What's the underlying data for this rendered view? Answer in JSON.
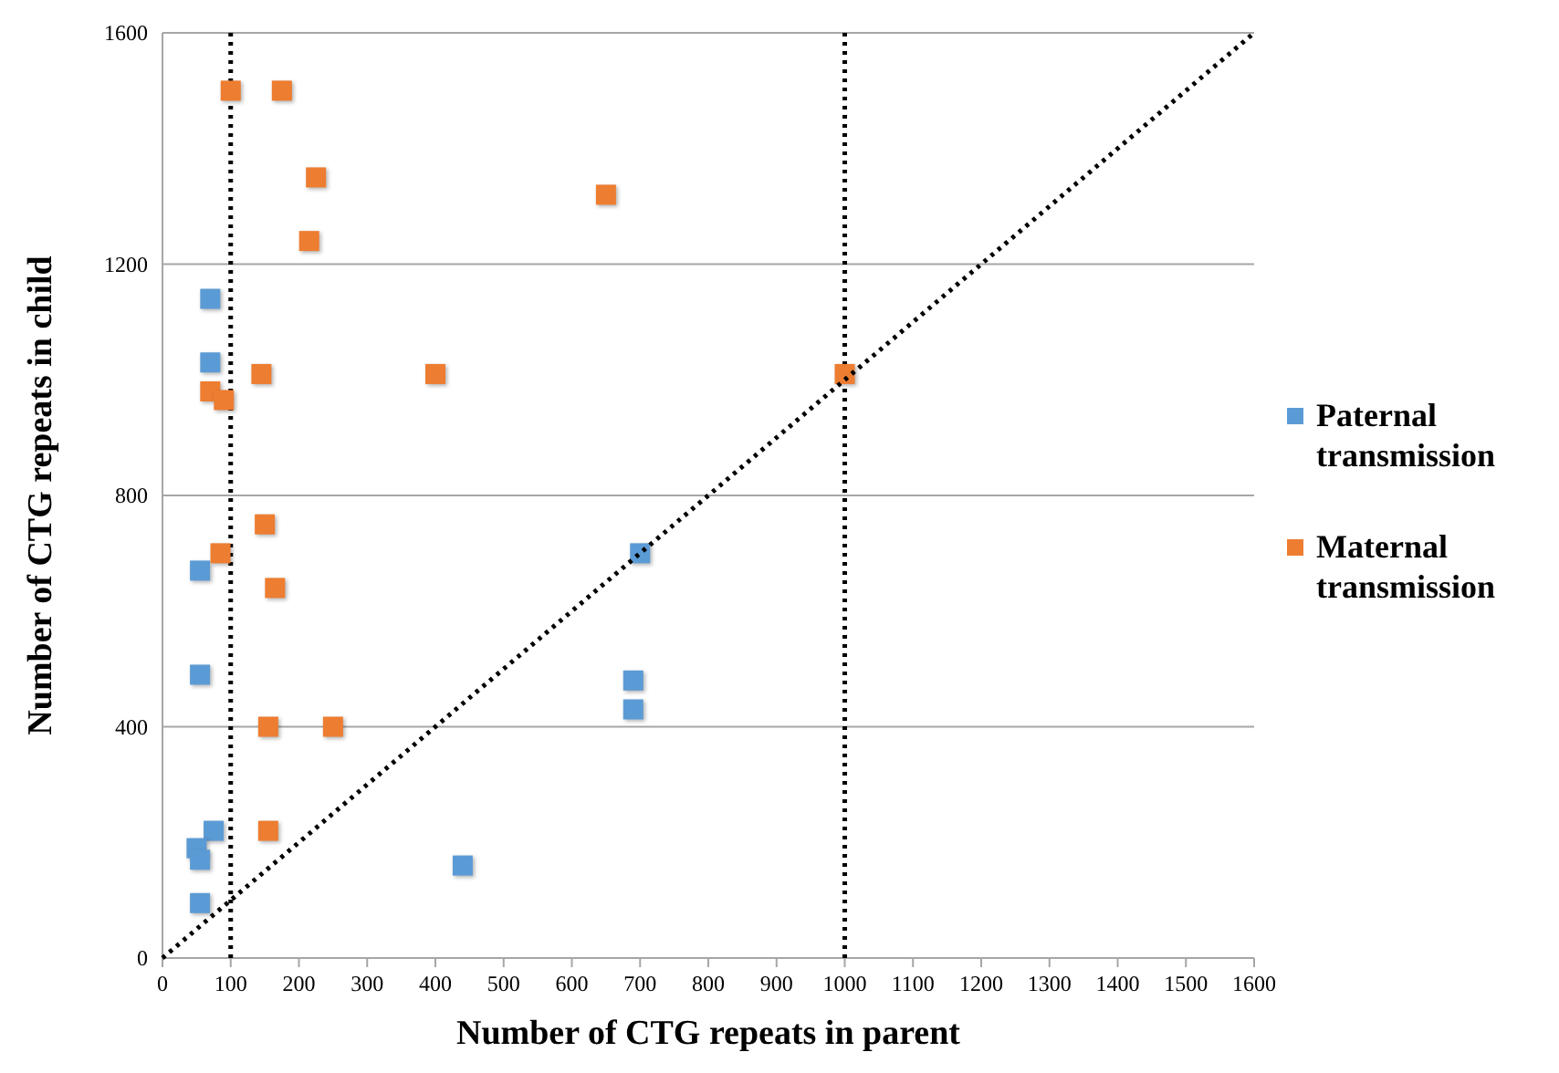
{
  "chart_data": {
    "type": "scatter",
    "xlabel": "Number of CTG repeats in parent",
    "ylabel": "Number of CTG repeats in child",
    "xlim": [
      0,
      1600
    ],
    "ylim": [
      0,
      1600
    ],
    "xticks": [
      0,
      100,
      200,
      300,
      400,
      500,
      600,
      700,
      800,
      900,
      1000,
      1100,
      1200,
      1300,
      1400,
      1500,
      1600
    ],
    "yticks": [
      0,
      400,
      800,
      1200,
      1600
    ],
    "grid": "y",
    "legend": "right",
    "marker": "square",
    "ref_lines": [
      {
        "axis": "x",
        "value": 100,
        "line_style": "dotted",
        "color": "#000000"
      },
      {
        "axis": "x",
        "value": 1000,
        "line_style": "dotted",
        "color": "#000000"
      }
    ],
    "series": [
      {
        "name": "Paternal transmission",
        "color": "#5b9bd5",
        "x": [
          70,
          70,
          55,
          55,
          75,
          50,
          55,
          55,
          440,
          690,
          690,
          700
        ],
        "values": [
          1140,
          1030,
          670,
          490,
          220,
          190,
          170,
          95,
          160,
          480,
          430,
          700
        ]
      },
      {
        "name": "Maternal transmission",
        "color": "#ed7d31",
        "x": [
          100,
          175,
          225,
          215,
          650,
          400,
          145,
          70,
          90,
          1000,
          150,
          85,
          165,
          155,
          250,
          155
        ],
        "values": [
          1500,
          1500,
          1350,
          1240,
          1320,
          1010,
          1010,
          980,
          965,
          1010,
          750,
          700,
          640,
          400,
          400,
          220
        ]
      },
      {
        "type": "line",
        "color": "#000000",
        "line_style": "dotted",
        "marker": "none",
        "x": [
          0,
          1600
        ],
        "values": [
          0,
          1600
        ]
      }
    ]
  }
}
